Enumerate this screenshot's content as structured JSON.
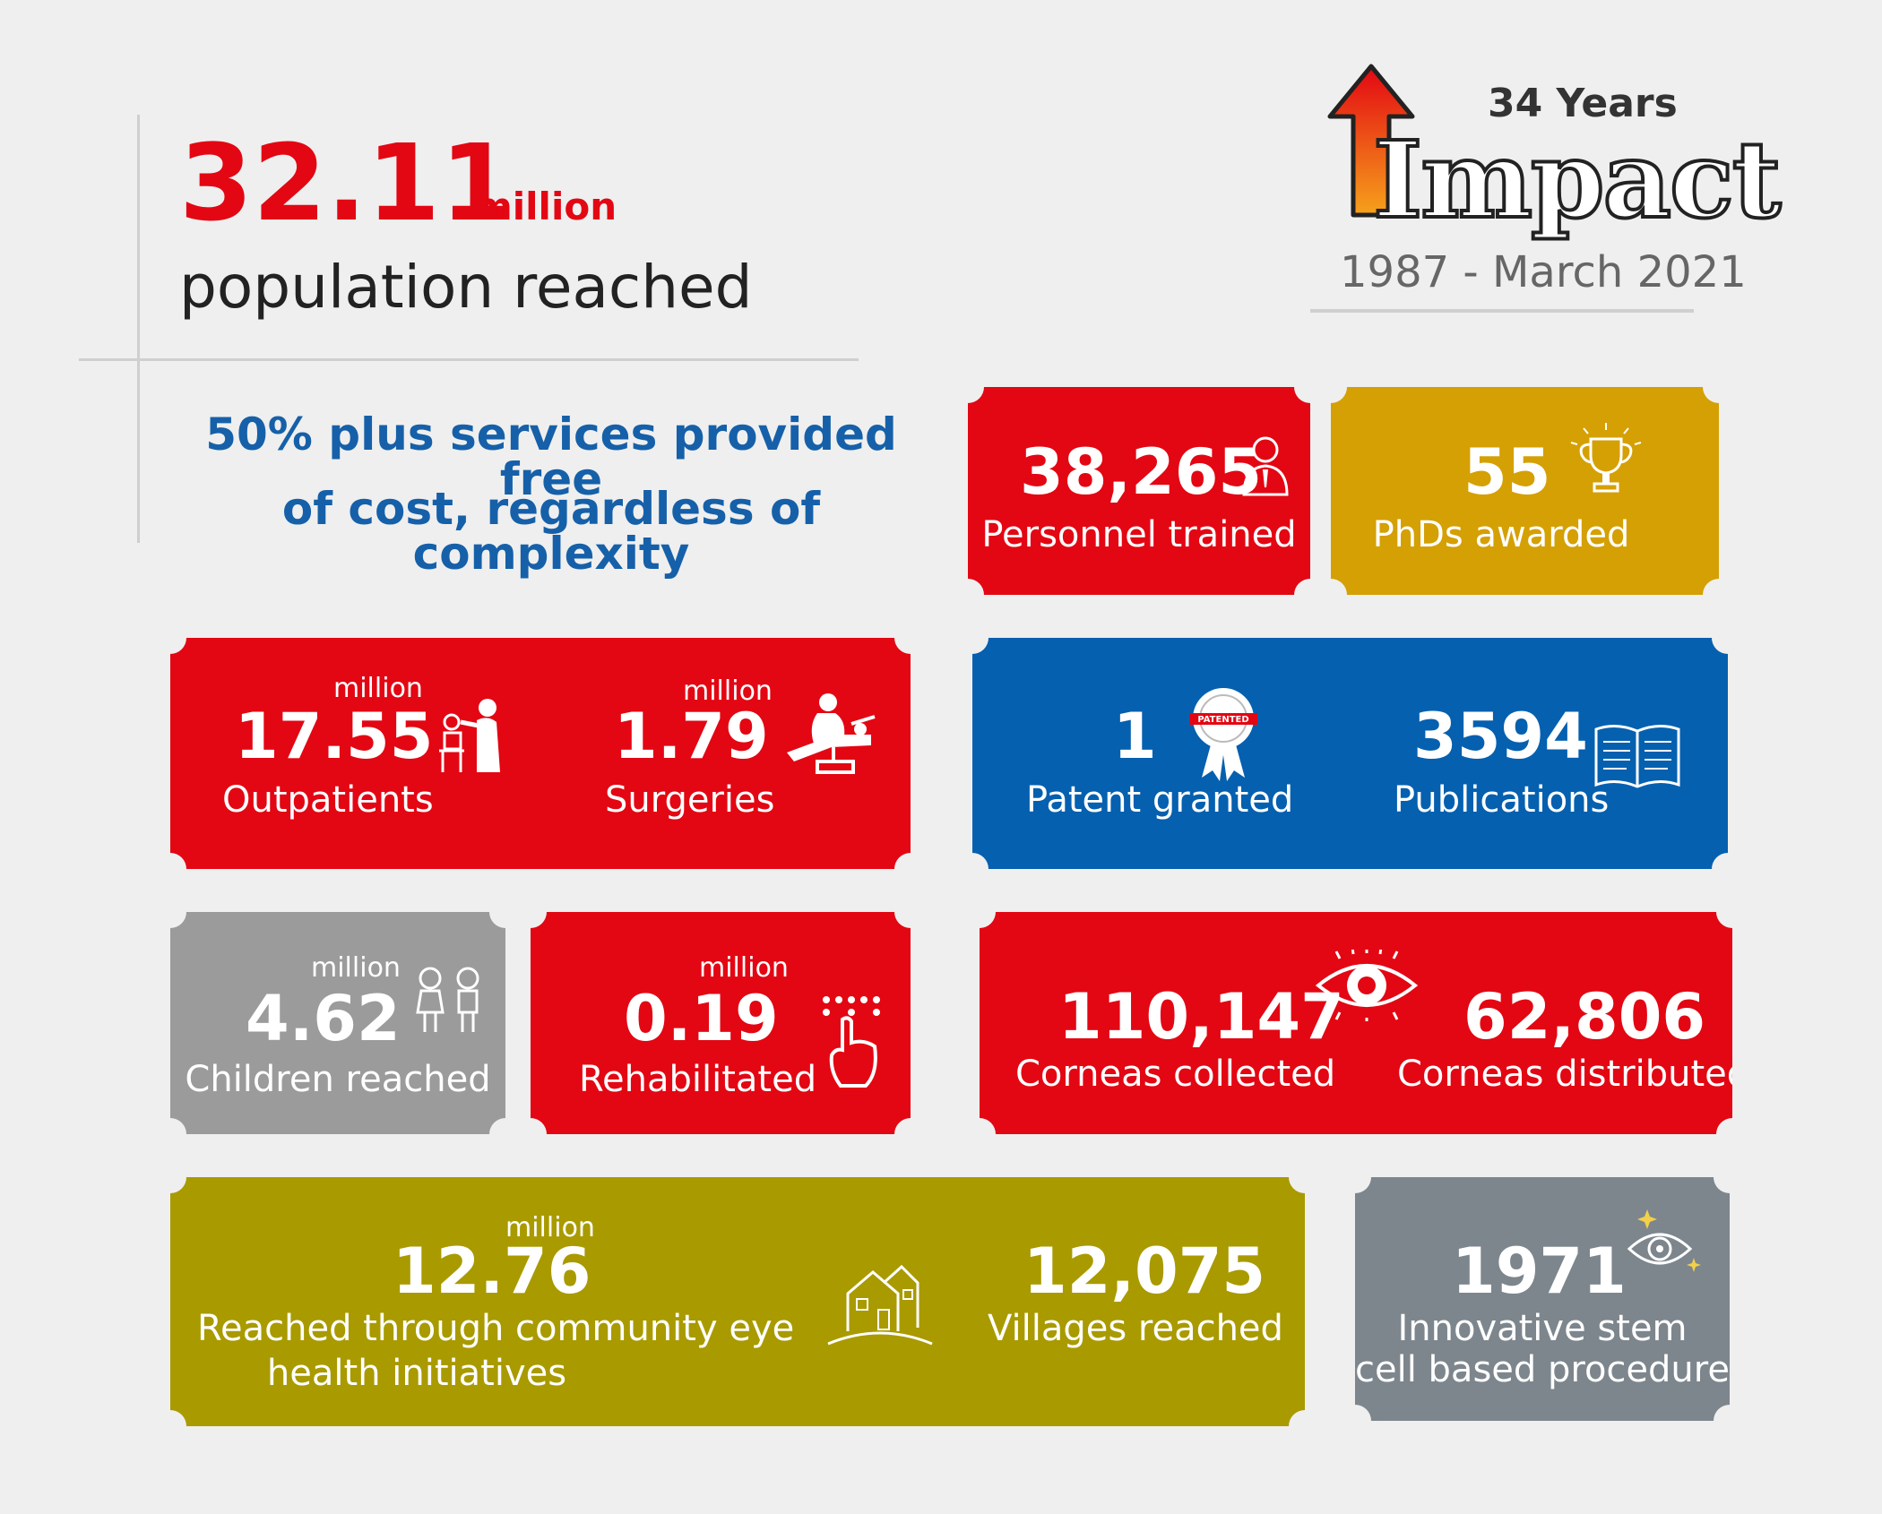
{
  "header": {
    "population_value": "32.11",
    "population_unit": "million",
    "population_label": "population reached",
    "free_services_line1": "50% plus services provided free",
    "free_services_line2": "of cost, regardless of complexity"
  },
  "logo": {
    "years": "34 Years",
    "word": "Impact",
    "period": "1987 - March 2021"
  },
  "stats": {
    "personnel": {
      "value": "38,265",
      "label": "Personnel trained"
    },
    "phds": {
      "value": "55",
      "label": "PhDs awarded"
    },
    "outpatients": {
      "unit": "million",
      "value": "17.55",
      "label": "Outpatients"
    },
    "surgeries": {
      "unit": "million",
      "value": "1.79",
      "label": "Surgeries"
    },
    "patent": {
      "value": "1",
      "label": "Patent granted",
      "seal_text": "PATENTED"
    },
    "publications": {
      "value": "3594",
      "label": "Publications"
    },
    "children": {
      "unit": "million",
      "value": "4.62",
      "label": "Children reached"
    },
    "rehabilitated": {
      "unit": "million",
      "value": "0.19",
      "label": "Rehabilitated"
    },
    "corneas_collected": {
      "value": "110,147",
      "label": "Corneas collected"
    },
    "corneas_distributed": {
      "value": "62,806",
      "label": "Corneas distributed"
    },
    "community": {
      "unit": "million",
      "value": "12.76",
      "label_line1": "Reached through community eye",
      "label_line2": "health initiatives"
    },
    "villages": {
      "value": "12,075",
      "label": "Villages reached"
    },
    "stem_cell": {
      "value": "1971",
      "label_line1": "Innovative stem",
      "label_line2": "cell based procedures"
    }
  },
  "colors": {
    "red": "#e30613",
    "gold": "#d4a004",
    "blue": "#0660b0",
    "grey": "#9b9b9b",
    "olive": "#a99a00",
    "slate": "#7c868c",
    "headline_blue": "#1560a8"
  },
  "icons": [
    "person-icon",
    "trophy-icon",
    "doctor-patient-icon",
    "surgery-icon",
    "patent-seal-icon",
    "book-icon",
    "children-icon",
    "braille-hand-icon",
    "eye-icon",
    "house-icon",
    "sparkle-eye-icon"
  ]
}
